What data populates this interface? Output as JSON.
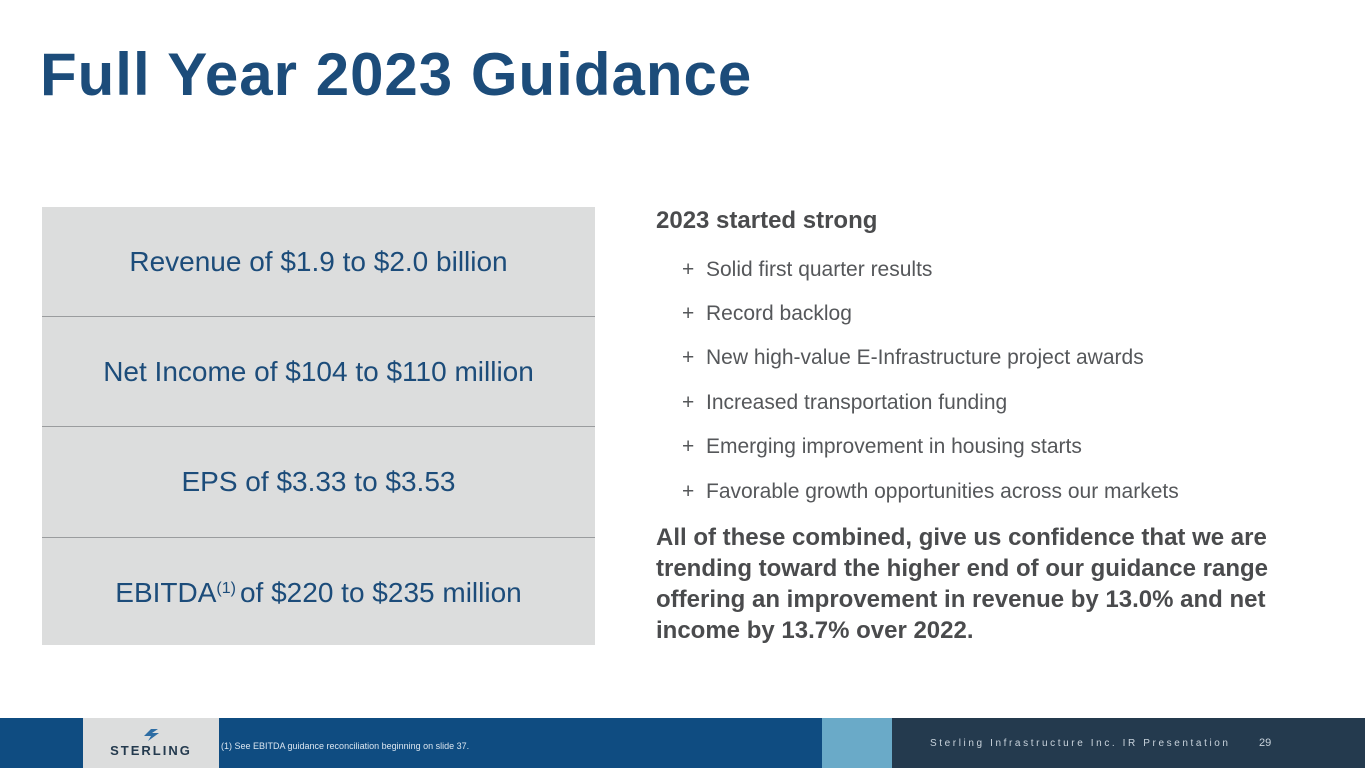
{
  "slide": {
    "title": "Full Year 2023 Guidance"
  },
  "guidance": {
    "rows": [
      {
        "text": "Revenue of $1.9 to $2.0 billion"
      },
      {
        "text": "Net Income of $104 to $110 million"
      },
      {
        "text": "EPS of $3.33 to $3.53"
      },
      {
        "prefix": "EBITDA",
        "superscript": "(1)",
        "suffix": "of $220 to $235 million"
      }
    ]
  },
  "highlights": {
    "heading": "2023 started strong",
    "bullet_symbol": "+",
    "bullets": [
      "Solid first quarter results",
      "Record backlog",
      "New high-value E-Infrastructure project awards",
      "Increased transportation funding",
      "Emerging improvement in housing starts",
      "Favorable growth opportunities across our markets"
    ],
    "conclusion": "All of these combined, give us confidence that we are trending toward the higher end of our guidance range offering an improvement in revenue by 13.0% and net income by 13.7% over 2022."
  },
  "footer": {
    "logo_text": "STERLING",
    "footnote": "(1) See EBITDA guidance reconciliation beginning on slide 37.",
    "company": "Sterling Infrastructure Inc. IR Presentation",
    "page_number": "29",
    "colors": {
      "blue": "#0f4c81",
      "light_blue": "#6aaac8",
      "dark": "#243a4e"
    }
  }
}
